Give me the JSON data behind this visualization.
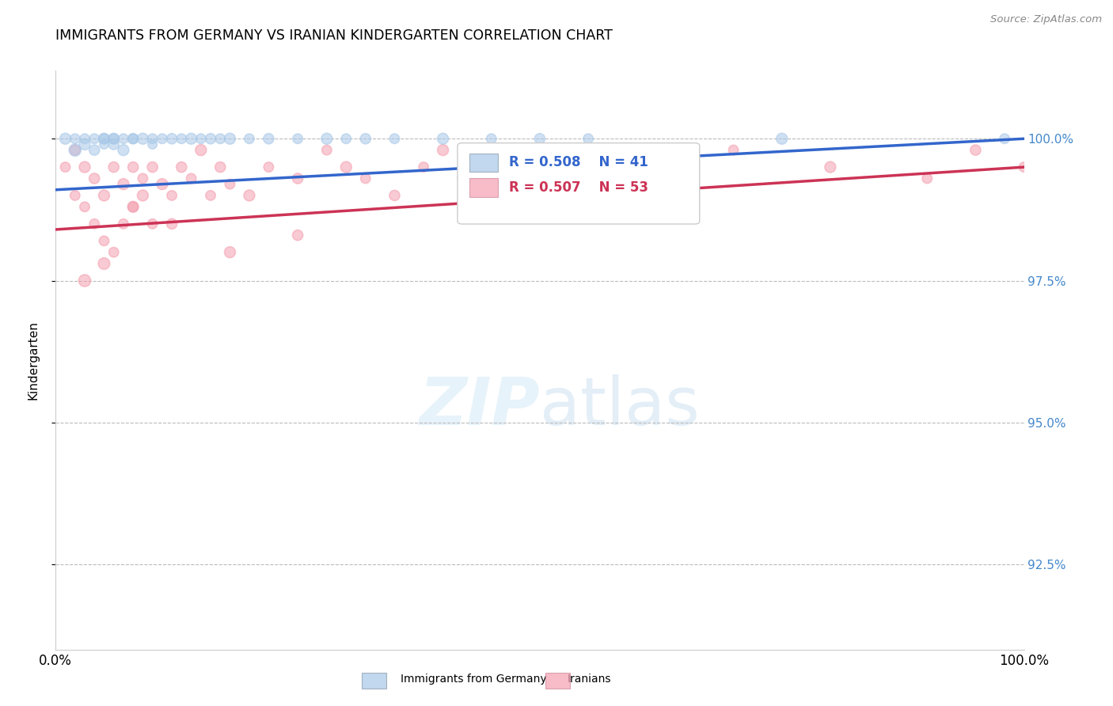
{
  "title": "IMMIGRANTS FROM GERMANY VS IRANIAN KINDERGARTEN CORRELATION CHART",
  "source": "Source: ZipAtlas.com",
  "ylabel": "Kindergarten",
  "xlim": [
    0,
    100
  ],
  "ylim": [
    91.0,
    101.2
  ],
  "yticks": [
    92.5,
    95.0,
    97.5,
    100.0
  ],
  "xticks": [
    0,
    100
  ],
  "xtick_labels": [
    "0.0%",
    "100.0%"
  ],
  "ytick_labels": [
    "92.5%",
    "95.0%",
    "97.5%",
    "100.0%"
  ],
  "legend_labels": [
    "Immigrants from Germany",
    "Iranians"
  ],
  "legend_r_blue": "R = 0.508",
  "legend_n_blue": "N = 41",
  "legend_r_pink": "R = 0.507",
  "legend_n_pink": "N = 53",
  "blue_color": "#a8c8e8",
  "pink_color": "#f4a0b0",
  "blue_line_color": "#3366cc",
  "pink_line_color": "#cc3355",
  "blue_x": [
    1,
    2,
    2,
    3,
    3,
    4,
    4,
    5,
    5,
    5,
    6,
    6,
    6,
    7,
    7,
    8,
    8,
    9,
    10,
    10,
    11,
    12,
    13,
    14,
    15,
    16,
    17,
    18,
    20,
    22,
    25,
    28,
    30,
    32,
    35,
    40,
    45,
    50,
    55,
    75,
    98
  ],
  "blue_y": [
    100.0,
    100.0,
    99.8,
    100.0,
    99.9,
    100.0,
    99.8,
    100.0,
    100.0,
    99.9,
    100.0,
    100.0,
    99.9,
    100.0,
    99.8,
    100.0,
    100.0,
    100.0,
    100.0,
    99.9,
    100.0,
    100.0,
    100.0,
    100.0,
    100.0,
    100.0,
    100.0,
    100.0,
    100.0,
    100.0,
    100.0,
    100.0,
    100.0,
    100.0,
    100.0,
    100.0,
    100.0,
    100.0,
    100.0,
    100.0,
    100.0
  ],
  "blue_sizes": [
    100,
    80,
    120,
    80,
    100,
    80,
    90,
    100,
    80,
    70,
    100,
    80,
    90,
    80,
    100,
    80,
    90,
    100,
    80,
    70,
    80,
    90,
    80,
    100,
    80,
    90,
    80,
    100,
    80,
    90,
    80,
    100,
    80,
    90,
    80,
    100,
    80,
    90,
    80,
    100,
    80
  ],
  "pink_x": [
    1,
    2,
    2,
    3,
    3,
    4,
    4,
    5,
    5,
    6,
    6,
    7,
    7,
    8,
    8,
    9,
    9,
    10,
    10,
    11,
    12,
    13,
    14,
    15,
    16,
    17,
    18,
    20,
    22,
    25,
    28,
    30,
    32,
    35,
    38,
    40,
    42,
    45,
    50,
    55,
    60,
    65,
    70,
    80,
    90,
    95,
    100,
    3,
    5,
    8,
    12,
    18,
    25
  ],
  "pink_y": [
    99.5,
    99.8,
    99.0,
    99.5,
    98.8,
    99.3,
    98.5,
    99.0,
    98.2,
    99.5,
    98.0,
    99.2,
    98.5,
    99.5,
    98.8,
    99.0,
    99.3,
    99.5,
    98.5,
    99.2,
    99.0,
    99.5,
    99.3,
    99.8,
    99.0,
    99.5,
    99.2,
    99.0,
    99.5,
    99.3,
    99.8,
    99.5,
    99.3,
    99.0,
    99.5,
    99.8,
    99.3,
    99.5,
    99.0,
    99.5,
    99.3,
    99.5,
    99.8,
    99.5,
    99.3,
    99.8,
    99.5,
    97.5,
    97.8,
    98.8,
    98.5,
    98.0,
    98.3
  ],
  "pink_sizes": [
    80,
    90,
    80,
    100,
    80,
    90,
    80,
    100,
    80,
    90,
    80,
    100,
    80,
    90,
    80,
    100,
    80,
    90,
    80,
    100,
    80,
    90,
    80,
    100,
    80,
    90,
    80,
    100,
    80,
    90,
    80,
    100,
    80,
    90,
    80,
    100,
    80,
    90,
    80,
    100,
    80,
    90,
    80,
    100,
    80,
    90,
    80,
    120,
    110,
    100,
    90,
    100,
    90
  ]
}
